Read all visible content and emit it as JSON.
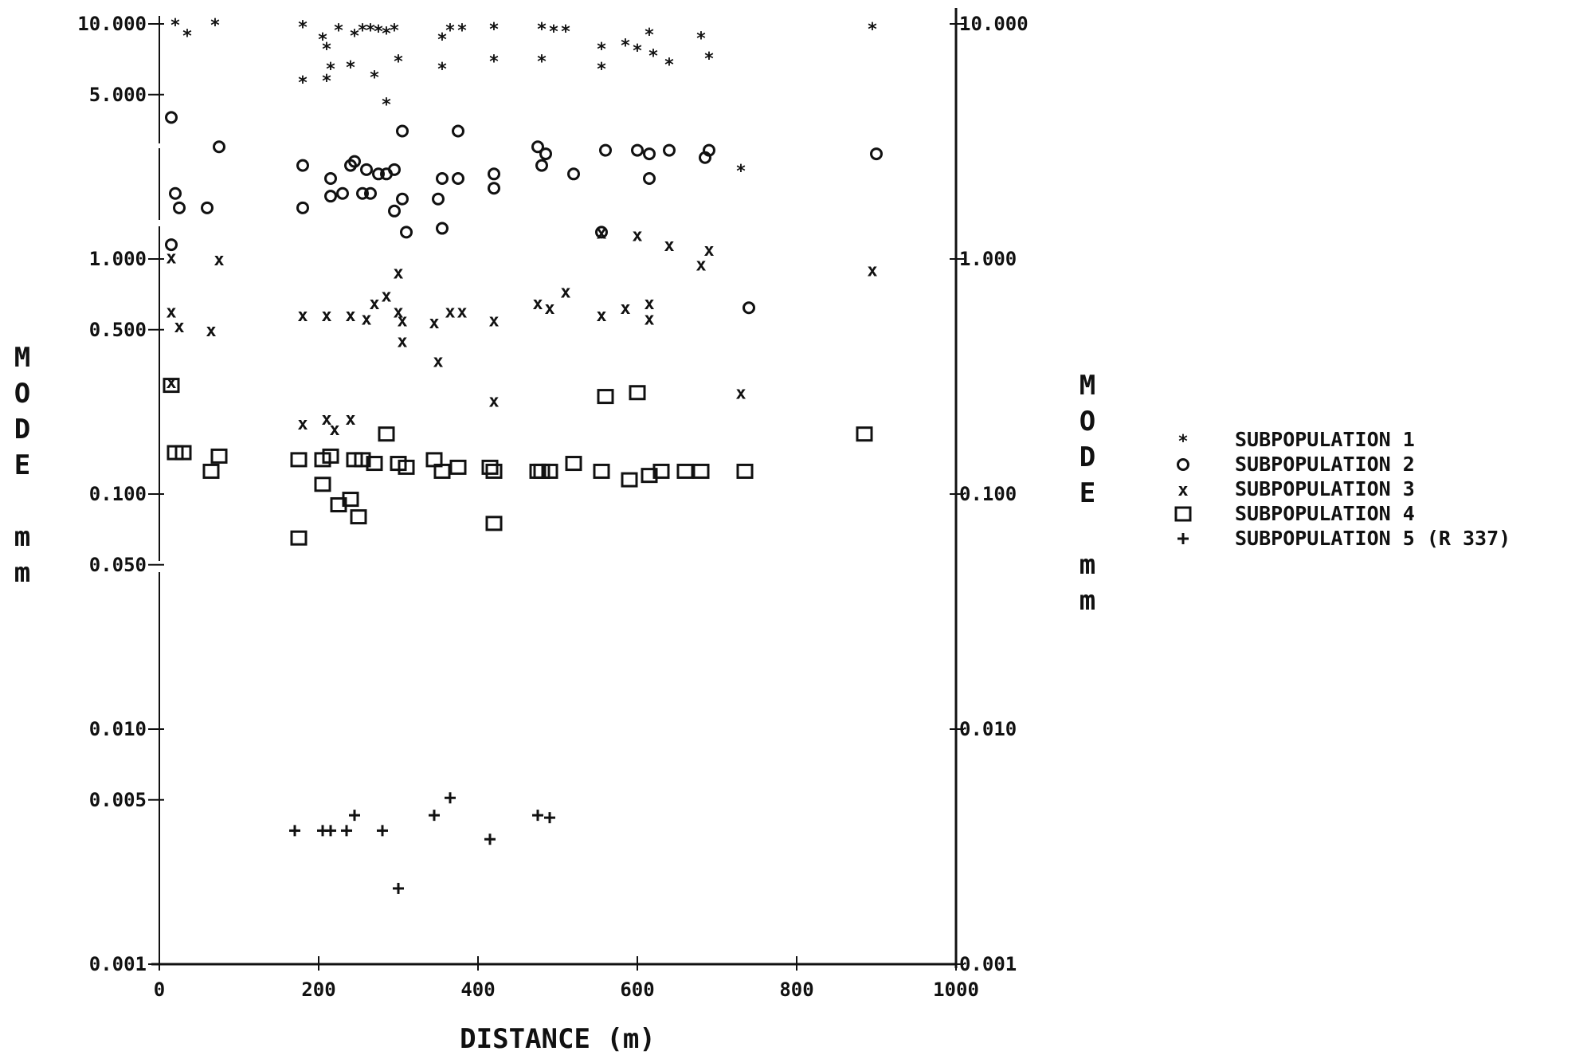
{
  "chart_data": {
    "type": "scatter",
    "xlabel": "DISTANCE (m)",
    "ylabel": "MODE mm",
    "xlim": [
      0,
      1000
    ],
    "ylim": [
      0.001,
      10.0
    ],
    "yscale": "log",
    "grid": false,
    "legend_placement": "right",
    "x_ticks": [
      "0",
      "200",
      "400",
      "600",
      "800",
      "1000"
    ],
    "y_ticks_left": [
      "10.000",
      "5.000",
      "1.000",
      "0.500",
      "0.100",
      "0.050",
      "0.010",
      "0.005",
      "0.001"
    ],
    "y_ticks_right": [
      "10.000",
      "1.000",
      "0.100",
      "0.010",
      "0.001"
    ],
    "series": [
      {
        "name": "SUBPOPULATION 1",
        "marker": "star",
        "points": [
          [
            20,
            10.0
          ],
          [
            35,
            9.0
          ],
          [
            70,
            10.0
          ],
          [
            180,
            9.8
          ],
          [
            205,
            8.7
          ],
          [
            210,
            7.9
          ],
          [
            225,
            9.5
          ],
          [
            245,
            9.0
          ],
          [
            255,
            9.5
          ],
          [
            265,
            9.5
          ],
          [
            275,
            9.4
          ],
          [
            285,
            9.2
          ],
          [
            295,
            9.5
          ],
          [
            355,
            8.7
          ],
          [
            365,
            9.5
          ],
          [
            380,
            9.5
          ],
          [
            420,
            9.6
          ],
          [
            480,
            9.6
          ],
          [
            495,
            9.4
          ],
          [
            510,
            9.4
          ],
          [
            555,
            7.9
          ],
          [
            585,
            8.2
          ],
          [
            600,
            7.8
          ],
          [
            615,
            9.1
          ],
          [
            620,
            7.4
          ],
          [
            640,
            6.8
          ],
          [
            680,
            8.8
          ],
          [
            690,
            7.2
          ],
          [
            895,
            9.6
          ],
          [
            180,
            5.7
          ],
          [
            210,
            5.8
          ],
          [
            215,
            6.5
          ],
          [
            240,
            6.6
          ],
          [
            270,
            6.0
          ],
          [
            300,
            7.0
          ],
          [
            355,
            6.5
          ],
          [
            420,
            7.0
          ],
          [
            480,
            7.0
          ],
          [
            555,
            6.5
          ],
          [
            285,
            4.6
          ],
          [
            730,
            2.4
          ]
        ]
      },
      {
        "name": "SUBPOPULATION 2",
        "marker": "circle",
        "points": [
          [
            15,
            4.0
          ],
          [
            75,
            3.0
          ],
          [
            180,
            2.5
          ],
          [
            215,
            2.2
          ],
          [
            240,
            2.5
          ],
          [
            245,
            2.6
          ],
          [
            260,
            2.4
          ],
          [
            275,
            2.3
          ],
          [
            285,
            2.3
          ],
          [
            295,
            2.4
          ],
          [
            305,
            3.5
          ],
          [
            375,
            3.5
          ],
          [
            355,
            2.2
          ],
          [
            375,
            2.2
          ],
          [
            420,
            2.3
          ],
          [
            420,
            2.0
          ],
          [
            475,
            3.0
          ],
          [
            485,
            2.8
          ],
          [
            480,
            2.5
          ],
          [
            520,
            2.3
          ],
          [
            560,
            2.9
          ],
          [
            600,
            2.9
          ],
          [
            615,
            2.8
          ],
          [
            640,
            2.9
          ],
          [
            685,
            2.7
          ],
          [
            690,
            2.9
          ],
          [
            900,
            2.8
          ],
          [
            20,
            1.9
          ],
          [
            25,
            1.65
          ],
          [
            60,
            1.65
          ],
          [
            180,
            1.65
          ],
          [
            215,
            1.85
          ],
          [
            230,
            1.9
          ],
          [
            255,
            1.9
          ],
          [
            265,
            1.9
          ],
          [
            295,
            1.6
          ],
          [
            305,
            1.8
          ],
          [
            350,
            1.8
          ],
          [
            310,
            1.3
          ],
          [
            355,
            1.35
          ],
          [
            15,
            1.15
          ],
          [
            555,
            1.3
          ],
          [
            740,
            0.62
          ],
          [
            615,
            2.2
          ]
        ]
      },
      {
        "name": "SUBPOPULATION 3",
        "marker": "x",
        "points": [
          [
            15,
            1.02
          ],
          [
            75,
            1.0
          ],
          [
            300,
            0.88
          ],
          [
            555,
            1.3
          ],
          [
            600,
            1.27
          ],
          [
            640,
            1.15
          ],
          [
            690,
            1.1
          ],
          [
            680,
            0.95
          ],
          [
            895,
            0.9
          ],
          [
            15,
            0.6
          ],
          [
            25,
            0.52
          ],
          [
            65,
            0.5
          ],
          [
            180,
            0.58
          ],
          [
            210,
            0.58
          ],
          [
            240,
            0.58
          ],
          [
            260,
            0.56
          ],
          [
            270,
            0.65
          ],
          [
            285,
            0.7
          ],
          [
            300,
            0.6
          ],
          [
            305,
            0.55
          ],
          [
            345,
            0.54
          ],
          [
            365,
            0.6
          ],
          [
            380,
            0.6
          ],
          [
            420,
            0.55
          ],
          [
            475,
            0.65
          ],
          [
            490,
            0.62
          ],
          [
            510,
            0.73
          ],
          [
            555,
            0.58
          ],
          [
            585,
            0.62
          ],
          [
            615,
            0.65
          ],
          [
            615,
            0.56
          ],
          [
            305,
            0.45
          ],
          [
            350,
            0.37
          ],
          [
            15,
            0.3
          ],
          [
            420,
            0.25
          ],
          [
            730,
            0.27
          ],
          [
            180,
            0.2
          ],
          [
            210,
            0.21
          ],
          [
            220,
            0.19
          ],
          [
            240,
            0.21
          ]
        ]
      },
      {
        "name": "SUBPOPULATION 4",
        "marker": "square",
        "points": [
          [
            15,
            0.29
          ],
          [
            20,
            0.15
          ],
          [
            30,
            0.15
          ],
          [
            65,
            0.125
          ],
          [
            75,
            0.145
          ],
          [
            175,
            0.14
          ],
          [
            205,
            0.14
          ],
          [
            215,
            0.145
          ],
          [
            245,
            0.14
          ],
          [
            255,
            0.14
          ],
          [
            270,
            0.135
          ],
          [
            285,
            0.18
          ],
          [
            300,
            0.135
          ],
          [
            310,
            0.13
          ],
          [
            345,
            0.14
          ],
          [
            355,
            0.125
          ],
          [
            375,
            0.13
          ],
          [
            415,
            0.13
          ],
          [
            420,
            0.125
          ],
          [
            475,
            0.125
          ],
          [
            480,
            0.125
          ],
          [
            490,
            0.125
          ],
          [
            520,
            0.135
          ],
          [
            560,
            0.26
          ],
          [
            555,
            0.125
          ],
          [
            590,
            0.115
          ],
          [
            600,
            0.27
          ],
          [
            615,
            0.12
          ],
          [
            630,
            0.125
          ],
          [
            660,
            0.125
          ],
          [
            680,
            0.125
          ],
          [
            735,
            0.125
          ],
          [
            885,
            0.18
          ],
          [
            205,
            0.11
          ],
          [
            225,
            0.09
          ],
          [
            240,
            0.095
          ],
          [
            250,
            0.08
          ],
          [
            175,
            0.065
          ],
          [
            420,
            0.075
          ]
        ]
      },
      {
        "name": "SUBPOPULATION 5 (R 337)",
        "marker": "plus",
        "points": [
          [
            170,
            0.0037
          ],
          [
            205,
            0.0037
          ],
          [
            215,
            0.0037
          ],
          [
            235,
            0.0037
          ],
          [
            245,
            0.0043
          ],
          [
            280,
            0.0037
          ],
          [
            300,
            0.0021
          ],
          [
            345,
            0.0043
          ],
          [
            365,
            0.0051
          ],
          [
            415,
            0.0034
          ],
          [
            475,
            0.0043
          ],
          [
            490,
            0.0042
          ]
        ]
      }
    ]
  },
  "legend": [
    {
      "symbol": "*",
      "label": "SUBPOPULATION 1"
    },
    {
      "symbol": "o",
      "label": "SUBPOPULATION 2"
    },
    {
      "symbol": "x",
      "label": "SUBPOPULATION 3"
    },
    {
      "symbol": "□",
      "label": "SUBPOPULATION 4"
    },
    {
      "symbol": "+",
      "label": "SUBPOPULATION 5 (R 337)"
    }
  ],
  "side_label_right": [
    "M",
    "O",
    "D",
    "E",
    "m",
    "m"
  ],
  "side_label_left": [
    "M",
    "O",
    "D",
    "E",
    "m",
    "m"
  ]
}
